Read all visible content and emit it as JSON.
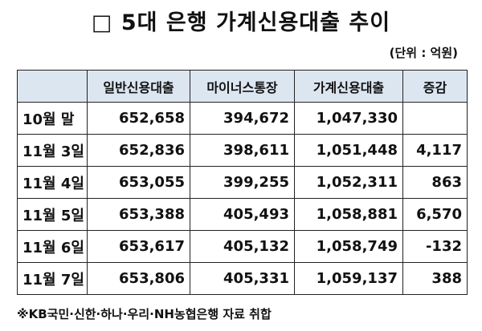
{
  "header": {
    "title": "□ 5대 은행 가계신용대출 추이",
    "unit": "(단위 : 억원)"
  },
  "table": {
    "columns": [
      "",
      "일반신용대출",
      "마이너스통장",
      "가계신용대출",
      "증감"
    ],
    "rows": [
      {
        "date": "10월 말",
        "general": "652,658",
        "overdraft": "394,672",
        "household": "1,047,330",
        "change": ""
      },
      {
        "date": "11월 3일",
        "general": "652,836",
        "overdraft": "398,611",
        "household": "1,051,448",
        "change": "4,117"
      },
      {
        "date": "11월 4일",
        "general": "653,055",
        "overdraft": "399,255",
        "household": "1,052,311",
        "change": "863"
      },
      {
        "date": "11월 5일",
        "general": "653,388",
        "overdraft": "405,493",
        "household": "1,058,881",
        "change": "6,570"
      },
      {
        "date": "11월 6일",
        "general": "653,617",
        "overdraft": "405,132",
        "household": "1,058,749",
        "change": "-132"
      },
      {
        "date": "11월 7일",
        "general": "653,806",
        "overdraft": "405,331",
        "household": "1,059,137",
        "change": "388"
      }
    ]
  },
  "footer": {
    "source": "※KB국민·신한·하나·우리·NH농협은행 자료 취합"
  }
}
